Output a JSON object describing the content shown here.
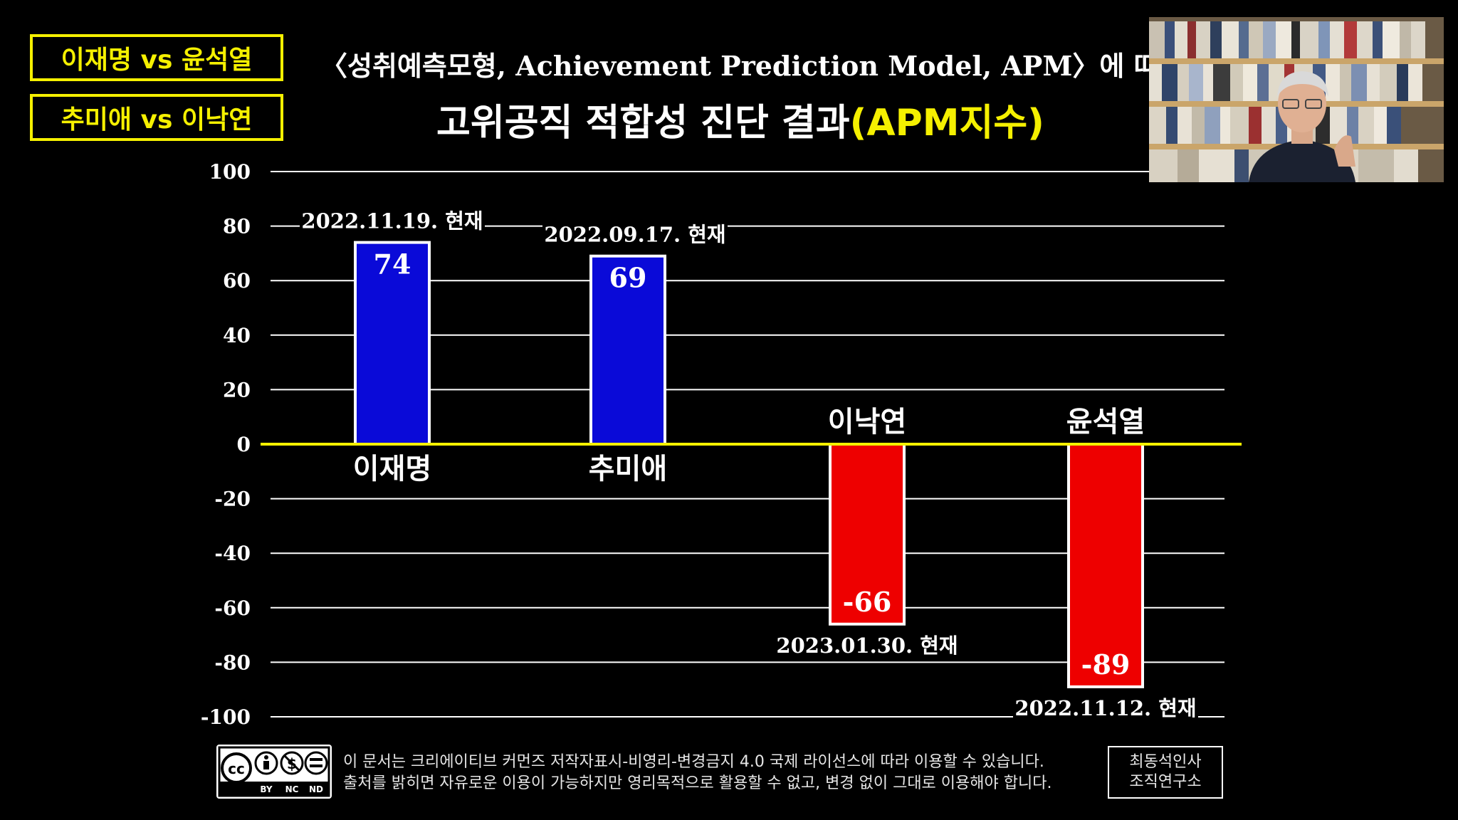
{
  "tags": [
    "이재명 vs 윤석열",
    "추미애 vs 이낙연"
  ],
  "subtitle": "〈성취예측모형, Achievement Prediction Model, APM〉에 따른",
  "title_main": "고위공직 적합성 진단 결과",
  "title_highlight": "(APM지수)",
  "chart_data": {
    "type": "bar",
    "categories": [
      "이재명",
      "추미애",
      "이낙연",
      "윤석열"
    ],
    "values": [
      74,
      69,
      -66,
      -89
    ],
    "value_labels": [
      "74",
      "69",
      "-66",
      "-89"
    ],
    "dates": [
      "2022.11.19. 현재",
      "2022.09.17. 현재",
      "2023.01.30. 현재",
      "2022.11.12. 현재"
    ],
    "ylim": [
      -100,
      100
    ],
    "yticks": [
      100,
      80,
      60,
      40,
      20,
      0,
      -20,
      -40,
      -60,
      -80,
      -100
    ],
    "title": "고위공직 적합성 진단 결과(APM지수)",
    "xlabel": "",
    "ylabel": "",
    "grid": true,
    "positive_color": "#0a0ad8",
    "negative_color": "#ee0000",
    "zero_line_color": "#f5f000"
  },
  "cc_badge": {
    "icon": "cc-by-nc-nd-icon",
    "labels": [
      "BY",
      "NC",
      "ND"
    ]
  },
  "license_lines": [
    "이 문서는 크리에이티브 커먼즈 저작자표시-비영리-변경금지 4.0 국제 라이선스에 따라 이용할 수 있습니다.",
    "출처를 밝히면 자유로운 이용이 가능하지만 영리목적으로 활용할 수 없고, 변경 없이 그대로 이용해야 합니다."
  ],
  "org_lines": [
    "최동석인사",
    "조직연구소"
  ]
}
